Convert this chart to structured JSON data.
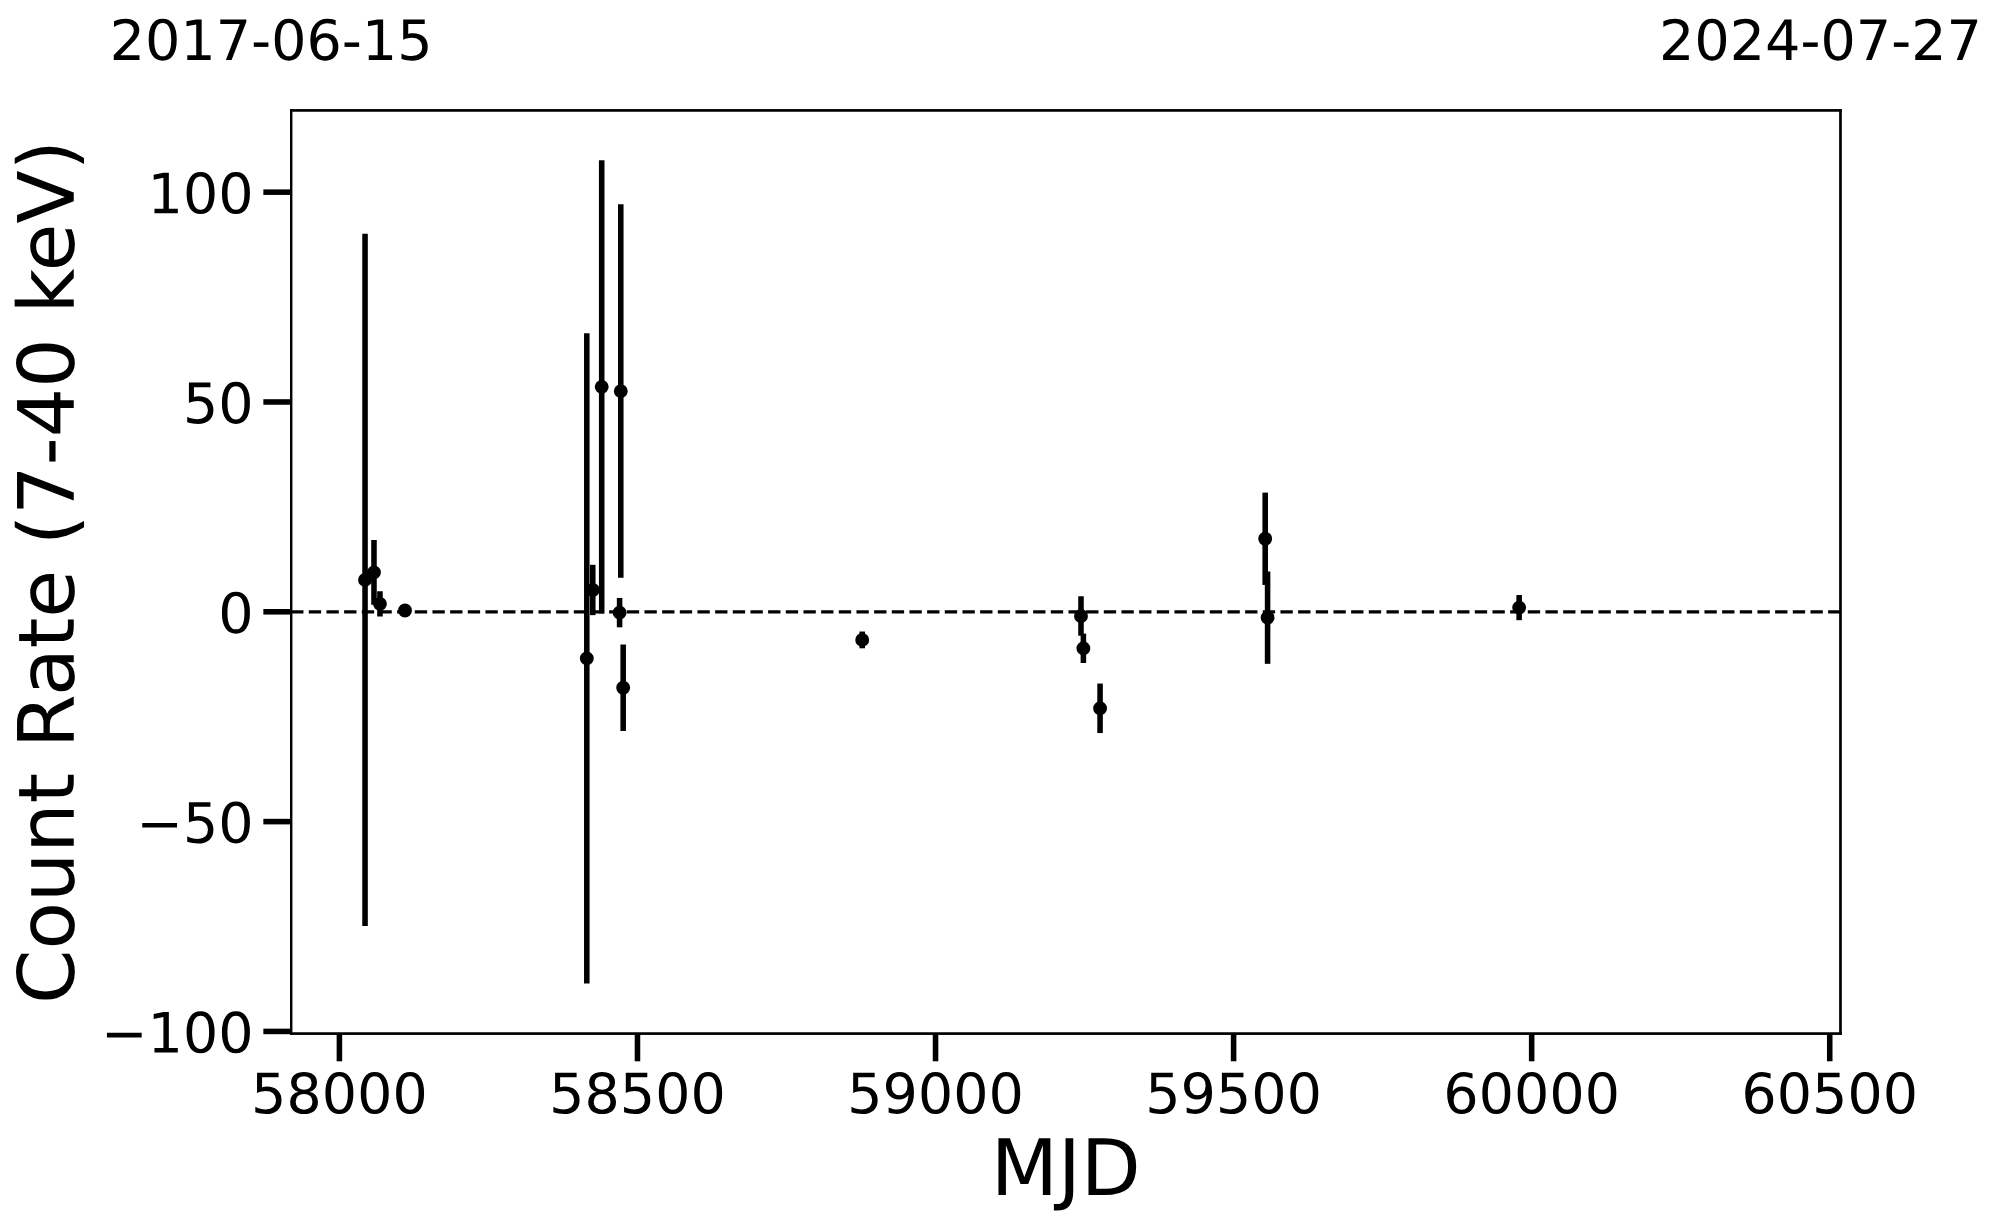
{
  "chart_data": {
    "type": "scatter",
    "xlabel": "MJD",
    "ylabel": "Count Rate (7-40 keV)",
    "x": [
      58043,
      58058,
      58068,
      58110,
      58415,
      58425,
      58440,
      58472,
      58470,
      58476,
      58877,
      59244,
      59248,
      59276,
      59553,
      59557,
      59979
    ],
    "values": [
      7.6,
      9.4,
      1.9,
      0.3,
      -11.1,
      5.2,
      53.6,
      52.6,
      -0.2,
      -18.1,
      -6.7,
      -1.0,
      -8.7,
      -23,
      17.4,
      -1.4,
      1.0
    ],
    "errors": [
      82.5,
      7.7,
      3,
      1,
      77.5,
      6,
      54,
      44.5,
      3.5,
      10.3,
      2,
      4.7,
      3.5,
      5.9,
      11,
      11,
      3
    ],
    "color": "#000000",
    "marker": "circle",
    "xlim": [
      57919,
      60518
    ],
    "xticks": [
      58000,
      58500,
      59000,
      59500,
      60000,
      60500
    ],
    "ylim": [
      -100.5,
      119.5
    ],
    "yticks": [
      -100,
      -50,
      0,
      50,
      100
    ],
    "x2lim": [
      "2017-06-15",
      "2024-07-27"
    ],
    "x2ticks": [
      "2017-06-15",
      "2024-07-27"
    ],
    "ref_lines": [
      {
        "axis": "y",
        "value": 0,
        "label": null,
        "color": "#000000",
        "line_style": "dashed"
      }
    ],
    "grid": false
  }
}
